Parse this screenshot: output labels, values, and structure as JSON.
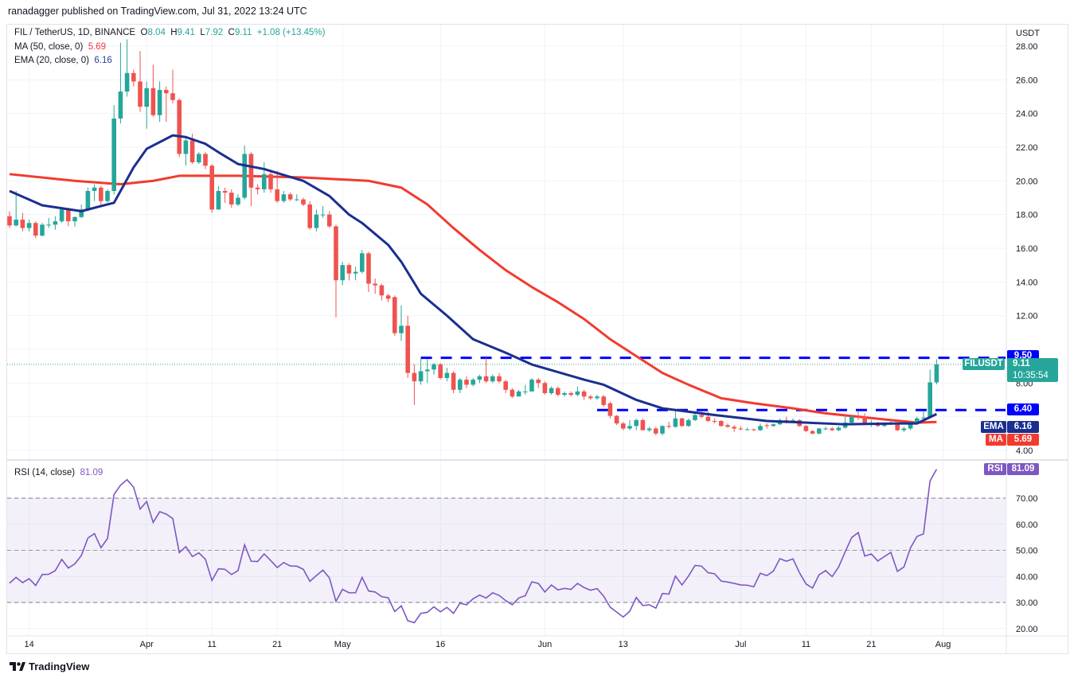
{
  "publisher": "ranadagger published on TradingView.com, Jul 31, 2022 13:24 UTC",
  "legend": {
    "symbol": "FIL / TetherUS, 1D, BINANCE",
    "o_label": "O",
    "o": "8.04",
    "h_label": "H",
    "h": "9.41",
    "l_label": "L",
    "l": "7.92",
    "c_label": "C",
    "c": "9.11",
    "change": "+1.08 (+13.45%)",
    "ma_label": "MA (50, close, 0)",
    "ma_value": "5.69",
    "ema_label": "EMA (20, close, 0)",
    "ema_value": "6.16",
    "rsi_label": "RSI (14, close)",
    "rsi_value": "81.09"
  },
  "axis": {
    "currency": "USDT",
    "price_ticks": [
      "28.00",
      "26.00",
      "24.00",
      "22.00",
      "20.00",
      "18.00",
      "16.00",
      "14.00",
      "12.00",
      "8.00",
      "4.00"
    ],
    "rsi_ticks": [
      "70.00",
      "60.00",
      "50.00",
      "40.00",
      "30.00",
      "20.00"
    ],
    "time_labels": [
      "14",
      "Apr",
      "11",
      "21",
      "May",
      "16",
      "Jun",
      "13",
      "Jul",
      "11",
      "21",
      "Aug"
    ]
  },
  "badges": {
    "resistance": "9.50",
    "symbol_tag": "FILUSDT",
    "last_price": "9.11",
    "countdown": "10:35:54",
    "support": "6.40",
    "ema_tag": "EMA",
    "ema": "6.16",
    "ma_tag": "MA",
    "ma": "5.69",
    "rsi_tag": "RSI",
    "rsi": "81.09"
  },
  "footer": {
    "brand": "TradingView"
  },
  "colors": {
    "up": "#26a69a",
    "down": "#ef5350",
    "ema": "#1a2f8f",
    "ma": "#f23b2f",
    "level": "#0000ff",
    "rsi": "#7e57c2",
    "rsi_band": "#7e57c2"
  },
  "chart_data": {
    "type": "candlestick",
    "title": "FIL / TetherUS, 1D, BINANCE",
    "first_date": "2022-03-11",
    "last_date": "2022-07-31",
    "ylim": [
      4,
      28
    ],
    "time_label_day_index": [
      3,
      21,
      31,
      41,
      51,
      66,
      82,
      94,
      112,
      122,
      132,
      143
    ],
    "ohlc": [
      [
        17.9,
        18.2,
        17.2,
        17.35
      ],
      [
        17.35,
        19.4,
        17.3,
        17.7
      ],
      [
        17.7,
        18.1,
        17.0,
        17.2
      ],
      [
        17.2,
        17.7,
        17.0,
        17.5
      ],
      [
        17.5,
        17.6,
        16.6,
        16.75
      ],
      [
        16.75,
        17.5,
        16.7,
        17.4
      ],
      [
        17.4,
        17.8,
        17.2,
        17.4
      ],
      [
        17.4,
        17.9,
        17.1,
        17.6
      ],
      [
        17.6,
        18.4,
        17.5,
        18.3
      ],
      [
        18.3,
        18.4,
        17.3,
        17.6
      ],
      [
        17.6,
        17.9,
        17.3,
        17.85
      ],
      [
        17.85,
        18.6,
        17.8,
        18.3
      ],
      [
        18.3,
        19.6,
        18.2,
        19.4
      ],
      [
        19.4,
        19.8,
        18.8,
        19.6
      ],
      [
        19.6,
        19.7,
        18.5,
        18.8
      ],
      [
        18.8,
        19.5,
        18.7,
        19.4
      ],
      [
        19.4,
        24.5,
        19.2,
        23.7
      ],
      [
        23.7,
        28.2,
        23.4,
        25.3
      ],
      [
        25.3,
        28.4,
        25.0,
        26.4
      ],
      [
        26.4,
        26.6,
        25.6,
        25.9
      ],
      [
        25.9,
        27.7,
        24.1,
        24.4
      ],
      [
        24.4,
        25.9,
        23.1,
        25.5
      ],
      [
        25.5,
        26.9,
        23.8,
        23.9
      ],
      [
        23.9,
        25.9,
        23.5,
        25.4
      ],
      [
        25.4,
        25.6,
        23.5,
        25.2
      ],
      [
        25.2,
        26.6,
        24.6,
        24.8
      ],
      [
        24.8,
        24.9,
        21.4,
        21.6
      ],
      [
        21.6,
        22.6,
        20.9,
        22.4
      ],
      [
        22.4,
        22.8,
        21.0,
        21.1
      ],
      [
        21.1,
        21.7,
        21.0,
        21.6
      ],
      [
        21.6,
        21.7,
        20.7,
        20.9
      ],
      [
        20.9,
        21.0,
        18.1,
        18.3
      ],
      [
        18.3,
        19.7,
        18.3,
        19.4
      ],
      [
        19.4,
        19.6,
        18.7,
        19.3
      ],
      [
        19.3,
        19.5,
        18.4,
        18.6
      ],
      [
        18.6,
        19.2,
        18.5,
        19.0
      ],
      [
        19.0,
        22.1,
        18.9,
        21.6
      ],
      [
        21.6,
        21.7,
        18.5,
        19.6
      ],
      [
        19.6,
        19.8,
        19.2,
        19.5
      ],
      [
        19.5,
        21.1,
        19.3,
        20.4
      ],
      [
        20.4,
        20.6,
        19.3,
        19.5
      ],
      [
        19.5,
        20.6,
        18.7,
        18.8
      ],
      [
        18.8,
        19.4,
        18.7,
        19.2
      ],
      [
        19.2,
        19.3,
        18.8,
        18.9
      ],
      [
        18.9,
        19.2,
        18.8,
        18.9
      ],
      [
        18.9,
        19.0,
        18.5,
        18.6
      ],
      [
        18.6,
        18.8,
        17.1,
        17.2
      ],
      [
        17.2,
        18.3,
        17.0,
        18.0
      ],
      [
        18.0,
        18.5,
        17.8,
        18.0
      ],
      [
        18.0,
        18.2,
        17.2,
        17.3
      ],
      [
        17.3,
        17.4,
        11.9,
        14.1
      ],
      [
        14.1,
        15.2,
        13.8,
        15.0
      ],
      [
        15.0,
        15.1,
        14.1,
        14.5
      ],
      [
        14.5,
        14.9,
        14.1,
        14.6
      ],
      [
        14.6,
        15.9,
        14.5,
        15.7
      ],
      [
        15.7,
        15.8,
        13.4,
        13.9
      ],
      [
        13.9,
        14.2,
        13.3,
        13.8
      ],
      [
        13.8,
        13.9,
        12.9,
        13.2
      ],
      [
        13.2,
        13.3,
        12.8,
        13.0
      ],
      [
        13.1,
        13.2,
        10.8,
        10.96
      ],
      [
        10.96,
        12.6,
        10.5,
        11.4
      ],
      [
        11.4,
        12.0,
        8.3,
        8.6
      ],
      [
        8.6,
        9.1,
        6.7,
        8.1
      ],
      [
        8.1,
        9.5,
        7.9,
        8.7
      ],
      [
        8.7,
        9.4,
        8.0,
        8.8
      ],
      [
        8.8,
        9.2,
        8.5,
        9.1
      ],
      [
        9.1,
        9.2,
        8.2,
        8.3
      ],
      [
        8.3,
        8.9,
        8.1,
        8.6
      ],
      [
        8.6,
        8.7,
        7.4,
        7.6
      ],
      [
        7.6,
        8.3,
        7.4,
        8.2
      ],
      [
        8.2,
        8.4,
        7.7,
        7.9
      ],
      [
        7.9,
        8.3,
        7.8,
        8.2
      ],
      [
        8.2,
        8.5,
        8.0,
        8.4
      ],
      [
        8.4,
        9.5,
        8.0,
        8.1
      ],
      [
        8.1,
        8.5,
        8.0,
        8.4
      ],
      [
        8.4,
        8.6,
        8.0,
        8.1
      ],
      [
        8.1,
        8.2,
        7.4,
        7.6
      ],
      [
        7.6,
        7.7,
        7.1,
        7.2
      ],
      [
        7.2,
        7.6,
        7.2,
        7.5
      ],
      [
        7.5,
        7.9,
        7.3,
        7.5
      ],
      [
        7.5,
        8.3,
        7.5,
        8.2
      ],
      [
        8.2,
        8.3,
        7.7,
        8.0
      ],
      [
        8.0,
        8.1,
        7.3,
        7.4
      ],
      [
        7.4,
        7.8,
        7.3,
        7.7
      ],
      [
        7.7,
        7.8,
        7.2,
        7.3
      ],
      [
        7.3,
        7.5,
        7.2,
        7.4
      ],
      [
        7.4,
        7.5,
        7.2,
        7.3
      ],
      [
        7.3,
        7.8,
        7.2,
        7.5
      ],
      [
        7.5,
        7.6,
        7.0,
        7.2
      ],
      [
        7.2,
        7.3,
        7.0,
        7.1
      ],
      [
        7.1,
        7.3,
        7.0,
        7.2
      ],
      [
        7.2,
        7.3,
        6.6,
        6.7
      ],
      [
        6.8,
        6.9,
        5.9,
        6.05
      ],
      [
        6.05,
        6.1,
        5.5,
        5.6
      ],
      [
        5.6,
        5.7,
        5.2,
        5.3
      ],
      [
        5.3,
        5.8,
        5.2,
        5.45
      ],
      [
        5.45,
        5.9,
        5.2,
        5.8
      ],
      [
        5.8,
        5.9,
        5.2,
        5.2
      ],
      [
        5.2,
        5.4,
        5.1,
        5.3
      ],
      [
        5.3,
        5.4,
        4.9,
        5.0
      ],
      [
        5.0,
        5.5,
        4.9,
        5.45
      ],
      [
        5.45,
        5.7,
        5.3,
        5.4
      ],
      [
        5.4,
        6.4,
        5.35,
        5.9
      ],
      [
        5.9,
        5.95,
        5.4,
        5.45
      ],
      [
        5.45,
        5.9,
        5.4,
        5.8
      ],
      [
        5.8,
        6.3,
        5.75,
        6.1
      ],
      [
        6.1,
        6.3,
        5.9,
        6.0
      ],
      [
        6.0,
        6.3,
        5.7,
        5.75
      ],
      [
        5.75,
        5.9,
        5.6,
        5.7
      ],
      [
        5.75,
        5.8,
        5.4,
        5.45
      ],
      [
        5.5,
        5.6,
        5.35,
        5.4
      ],
      [
        5.4,
        5.5,
        5.1,
        5.3
      ],
      [
        5.3,
        5.45,
        5.2,
        5.25
      ],
      [
        5.25,
        5.35,
        5.2,
        5.25
      ],
      [
        5.25,
        5.3,
        5.15,
        5.2
      ],
      [
        5.2,
        5.6,
        5.15,
        5.45
      ],
      [
        5.5,
        5.6,
        5.3,
        5.45
      ],
      [
        5.45,
        5.6,
        5.4,
        5.55
      ],
      [
        5.55,
        5.9,
        5.5,
        5.8
      ],
      [
        5.8,
        6.0,
        5.6,
        5.7
      ],
      [
        5.7,
        5.9,
        5.65,
        5.8
      ],
      [
        5.8,
        5.85,
        5.4,
        5.45
      ],
      [
        5.45,
        5.5,
        5.1,
        5.15
      ],
      [
        5.15,
        5.2,
        4.95,
        5.0
      ],
      [
        5.0,
        5.35,
        4.95,
        5.3
      ],
      [
        5.3,
        5.4,
        5.2,
        5.3
      ],
      [
        5.3,
        5.4,
        5.15,
        5.2
      ],
      [
        5.2,
        5.45,
        5.15,
        5.35
      ],
      [
        5.35,
        6.0,
        5.3,
        5.65
      ],
      [
        5.65,
        6.1,
        5.6,
        6.0
      ],
      [
        6.0,
        6.3,
        5.8,
        5.95
      ],
      [
        6.0,
        6.2,
        5.5,
        5.55
      ],
      [
        5.55,
        5.8,
        5.4,
        5.6
      ],
      [
        5.6,
        5.7,
        5.4,
        5.45
      ],
      [
        5.45,
        5.6,
        5.4,
        5.55
      ],
      [
        5.55,
        5.8,
        5.5,
        5.6
      ],
      [
        5.6,
        5.65,
        5.15,
        5.2
      ],
      [
        5.2,
        5.4,
        5.1,
        5.3
      ],
      [
        5.3,
        5.7,
        5.2,
        5.6
      ],
      [
        5.6,
        6.0,
        5.55,
        5.9
      ],
      [
        5.9,
        6.3,
        5.8,
        5.95
      ],
      [
        5.95,
        8.8,
        5.9,
        8.04
      ],
      [
        8.04,
        9.41,
        7.92,
        9.11
      ]
    ],
    "ema20": [
      [
        0,
        19.4
      ],
      [
        5,
        18.55
      ],
      [
        11,
        18.2
      ],
      [
        16,
        18.7
      ],
      [
        19,
        20.8
      ],
      [
        21,
        21.9
      ],
      [
        25,
        22.7
      ],
      [
        27,
        22.6
      ],
      [
        30,
        22.2
      ],
      [
        32,
        21.7
      ],
      [
        35,
        21.0
      ],
      [
        39,
        20.7
      ],
      [
        45,
        20.0
      ],
      [
        49,
        19.1
      ],
      [
        52,
        18.0
      ],
      [
        54,
        17.5
      ],
      [
        58,
        16.2
      ],
      [
        60,
        15.2
      ],
      [
        63,
        13.3
      ],
      [
        67,
        12.0
      ],
      [
        71,
        10.6
      ],
      [
        76,
        9.8
      ],
      [
        80,
        9.1
      ],
      [
        88,
        8.2
      ],
      [
        91,
        7.9
      ],
      [
        96,
        7.0
      ],
      [
        100,
        6.5
      ],
      [
        108,
        6.1
      ],
      [
        116,
        5.75
      ],
      [
        128,
        5.55
      ],
      [
        136,
        5.6
      ],
      [
        139,
        5.6
      ],
      [
        142,
        6.16
      ]
    ],
    "ma50": [
      [
        0,
        20.4
      ],
      [
        10,
        20.0
      ],
      [
        17,
        19.8
      ],
      [
        22,
        20.0
      ],
      [
        26,
        20.3
      ],
      [
        35,
        20.3
      ],
      [
        45,
        20.2
      ],
      [
        55,
        20.0
      ],
      [
        60,
        19.6
      ],
      [
        64,
        18.6
      ],
      [
        68,
        17.2
      ],
      [
        72,
        15.9
      ],
      [
        76,
        14.7
      ],
      [
        80,
        13.7
      ],
      [
        84,
        12.8
      ],
      [
        88,
        11.8
      ],
      [
        92,
        10.6
      ],
      [
        96,
        9.6
      ],
      [
        100,
        8.6
      ],
      [
        104,
        7.9
      ],
      [
        109,
        7.1
      ],
      [
        114,
        6.8
      ],
      [
        120,
        6.5
      ],
      [
        125,
        6.2
      ],
      [
        130,
        6.0
      ],
      [
        135,
        5.8
      ],
      [
        139,
        5.65
      ],
      [
        142,
        5.69
      ]
    ],
    "levels": [
      {
        "value": 9.5,
        "from_day": 63
      },
      {
        "value": 6.4,
        "from_day": 90
      }
    ],
    "rsi": {
      "ylim": [
        15,
        85
      ],
      "bands": [
        30,
        70
      ],
      "midline": 50,
      "values": [
        37.4,
        39.6,
        37.6,
        39.1,
        36.5,
        40.7,
        40.8,
        42.2,
        46.5,
        43.2,
        44.8,
        48.0,
        54.7,
        56.4,
        51.0,
        54.5,
        71.4,
        75.0,
        77.1,
        74.2,
        65.8,
        68.7,
        60.7,
        64.8,
        63.9,
        62.2,
        49.1,
        51.4,
        47.6,
        49.0,
        46.6,
        38.4,
        42.9,
        42.7,
        40.7,
        42.2,
        52.1,
        45.8,
        45.7,
        48.6,
        46.1,
        43.4,
        45.3,
        44.0,
        43.9,
        42.7,
        38.1,
        40.3,
        42.4,
        39.4,
        30.4,
        35.0,
        33.7,
        33.7,
        39.6,
        34.4,
        34.0,
        32.2,
        31.8,
        26.5,
        28.7,
        23.0,
        22.2,
        25.8,
        26.2,
        28.3,
        26.4,
        28.1,
        25.8,
        29.7,
        29.1,
        31.4,
        32.8,
        31.7,
        33.7,
        32.7,
        30.7,
        29.1,
        31.7,
        32.6,
        37.9,
        37.3,
        34.0,
        36.7,
        34.8,
        35.4,
        35.0,
        37.3,
        35.7,
        34.7,
        35.3,
        32.4,
        28.2,
        26.3,
        24.4,
        26.6,
        31.9,
        28.8,
        29.1,
        27.8,
        33.4,
        33.2,
        40.1,
        36.7,
        40.1,
        44.2,
        43.9,
        41.4,
        41.0,
        38.2,
        37.8,
        37.3,
        36.7,
        36.6,
        36.0,
        41.2,
        40.3,
        42.0,
        46.8,
        45.8,
        46.7,
        41.4,
        37.1,
        35.5,
        40.6,
        42.2,
        39.9,
        43.6,
        49.4,
        54.9,
        56.8,
        47.8,
        48.6,
        45.9,
        47.6,
        49.2,
        41.9,
        43.6,
        50.9,
        55.3,
        56.3,
        76.6,
        81.09
      ]
    }
  }
}
